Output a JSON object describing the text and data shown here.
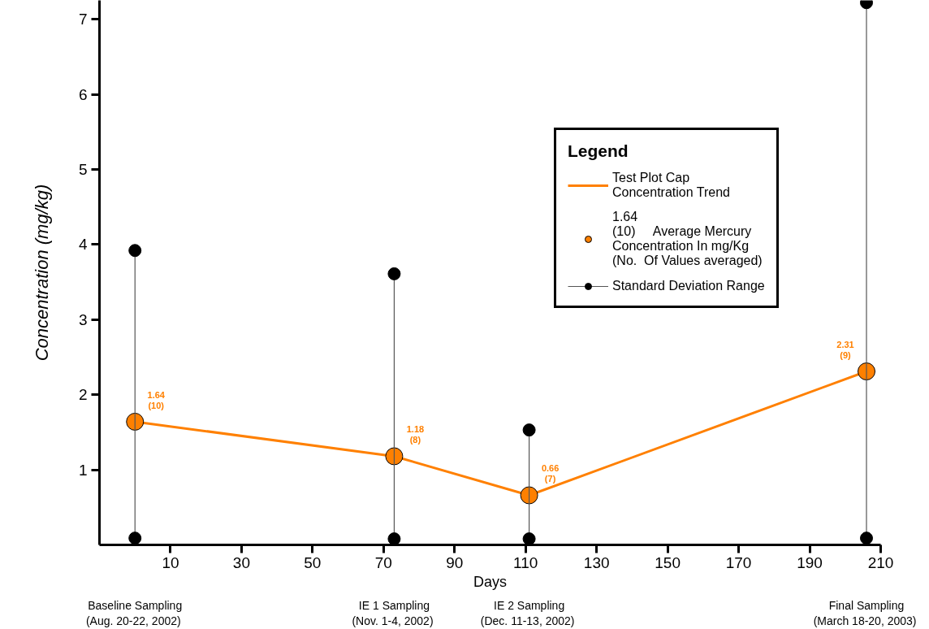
{
  "chart_data": {
    "type": "line",
    "xlabel": "Days",
    "ylabel": "Concentration (mg/kg)",
    "legend_title": "Legend",
    "legend": "top right",
    "grid": false,
    "x": [
      0,
      73,
      111,
      206
    ],
    "xlim": [
      -10,
      210
    ],
    "xticks": [
      10,
      30,
      50,
      70,
      90,
      110,
      130,
      150,
      170,
      190,
      210
    ],
    "ylim": [
      0,
      7.25
    ],
    "yticks": [
      1,
      2,
      3,
      4,
      5,
      6,
      7
    ],
    "series": [
      {
        "name": "Test Plot Cap\nConcentration Trend",
        "color": "#ff8000",
        "values": [
          1.64,
          1.18,
          0.66,
          2.31
        ]
      },
      {
        "name": "1.64\n(10)     Average Mercury\nConcentration In mg/Kg\n(No.  Of Values averaged)",
        "type": "scatter",
        "marker": "circle",
        "color": "#ff8000",
        "values": [
          1.64,
          1.18,
          0.66,
          2.31
        ],
        "value_labels": [
          "1.64\n(10)",
          "1.18\n(8)",
          "0.66\n(7)",
          "2.31\n(9)"
        ]
      },
      {
        "name": "Standard Deviation Range",
        "type": "line",
        "marker": "circle",
        "color": "#000000",
        "x": [
          0,
          0,
          null,
          73,
          73,
          null,
          111,
          111,
          null,
          206,
          206
        ],
        "values": [
          0.09,
          3.92,
          null,
          0.08,
          3.61,
          null,
          0.08,
          1.53,
          null,
          0.09,
          7.22
        ]
      }
    ],
    "annotations": [
      "Baseline Sampling\n(Aug.  20-22, 2002)",
      "IE 1 Sampling\n(Nov.  1-4, 2002)",
      "IE 2 Sampling\n(Dec.  11-13, 2002)",
      "Final Sampling\n(March  18-20, 2003)"
    ]
  }
}
